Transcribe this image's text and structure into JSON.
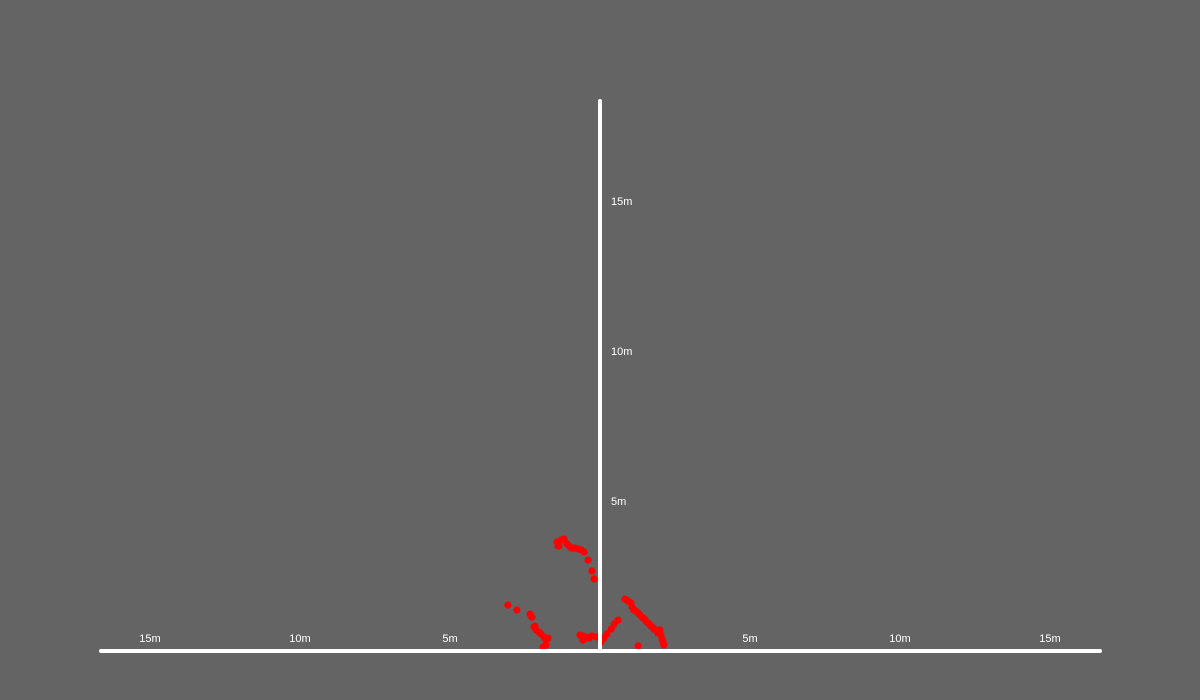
{
  "colors": {
    "background": "#646464",
    "axis": "#ffffff",
    "points": "#ff0000"
  },
  "chart_data": {
    "type": "scatter",
    "title": "",
    "xlabel": "",
    "ylabel": "",
    "xlim": [
      -16.7,
      16.7
    ],
    "ylim": [
      0,
      18.4
    ],
    "grid": false,
    "x_ticks": [
      {
        "value": -15,
        "label": "15m"
      },
      {
        "value": -10,
        "label": "10m"
      },
      {
        "value": -5,
        "label": "5m"
      },
      {
        "value": 5,
        "label": "5m"
      },
      {
        "value": 10,
        "label": "10m"
      },
      {
        "value": 15,
        "label": "15m"
      }
    ],
    "y_ticks": [
      {
        "value": 5,
        "label": "5m"
      },
      {
        "value": 10,
        "label": "10m"
      },
      {
        "value": 15,
        "label": "15m"
      }
    ],
    "series": [
      {
        "points": [
          [
            -1.43,
            3.63
          ],
          [
            -1.37,
            3.5
          ],
          [
            -1.3,
            3.7
          ],
          [
            -1.2,
            3.73
          ],
          [
            -1.1,
            3.57
          ],
          [
            -1.0,
            3.47
          ],
          [
            -0.93,
            3.43
          ],
          [
            -0.83,
            3.43
          ],
          [
            -0.73,
            3.4
          ],
          [
            -0.63,
            3.37
          ],
          [
            -0.53,
            3.3
          ],
          [
            -0.4,
            3.03
          ],
          [
            -0.27,
            2.67
          ],
          [
            -0.2,
            2.4
          ],
          [
            -1.4,
            3.5
          ],
          [
            -3.07,
            1.53
          ],
          [
            -2.77,
            1.37
          ],
          [
            -2.33,
            1.23
          ],
          [
            -2.27,
            1.13
          ],
          [
            -2.17,
            0.83
          ],
          [
            -2.13,
            0.7
          ],
          [
            -2.03,
            0.63
          ],
          [
            -1.97,
            0.57
          ],
          [
            -1.87,
            0.47
          ],
          [
            -1.8,
            0.37
          ],
          [
            -1.73,
            0.43
          ],
          [
            -1.8,
            0.2
          ],
          [
            -1.9,
            0.13
          ],
          [
            -2.2,
            0.8
          ],
          [
            -0.67,
            0.53
          ],
          [
            -0.57,
            0.37
          ],
          [
            -0.47,
            0.47
          ],
          [
            -0.37,
            0.43
          ],
          [
            -0.27,
            0.5
          ],
          [
            -0.13,
            0.47
          ],
          [
            0.03,
            0.3
          ],
          [
            0.13,
            0.43
          ],
          [
            0.23,
            0.57
          ],
          [
            0.37,
            0.73
          ],
          [
            0.47,
            0.9
          ],
          [
            0.6,
            1.03
          ],
          [
            -0.57,
            0.5
          ],
          [
            0.83,
            1.73
          ],
          [
            0.93,
            1.67
          ],
          [
            1.03,
            1.6
          ],
          [
            1.07,
            1.47
          ],
          [
            1.13,
            1.37
          ],
          [
            1.2,
            1.33
          ],
          [
            1.27,
            1.27
          ],
          [
            1.33,
            1.2
          ],
          [
            1.4,
            1.13
          ],
          [
            1.47,
            1.07
          ],
          [
            1.53,
            1.0
          ],
          [
            1.6,
            0.93
          ],
          [
            1.67,
            0.87
          ],
          [
            1.73,
            0.8
          ],
          [
            1.8,
            0.73
          ],
          [
            1.87,
            0.7
          ],
          [
            1.93,
            0.63
          ],
          [
            2.0,
            0.7
          ],
          [
            2.03,
            0.53
          ],
          [
            2.07,
            0.4
          ],
          [
            2.1,
            0.3
          ],
          [
            2.13,
            0.2
          ],
          [
            1.93,
            0.6
          ],
          [
            1.27,
            0.17
          ]
        ]
      }
    ]
  }
}
